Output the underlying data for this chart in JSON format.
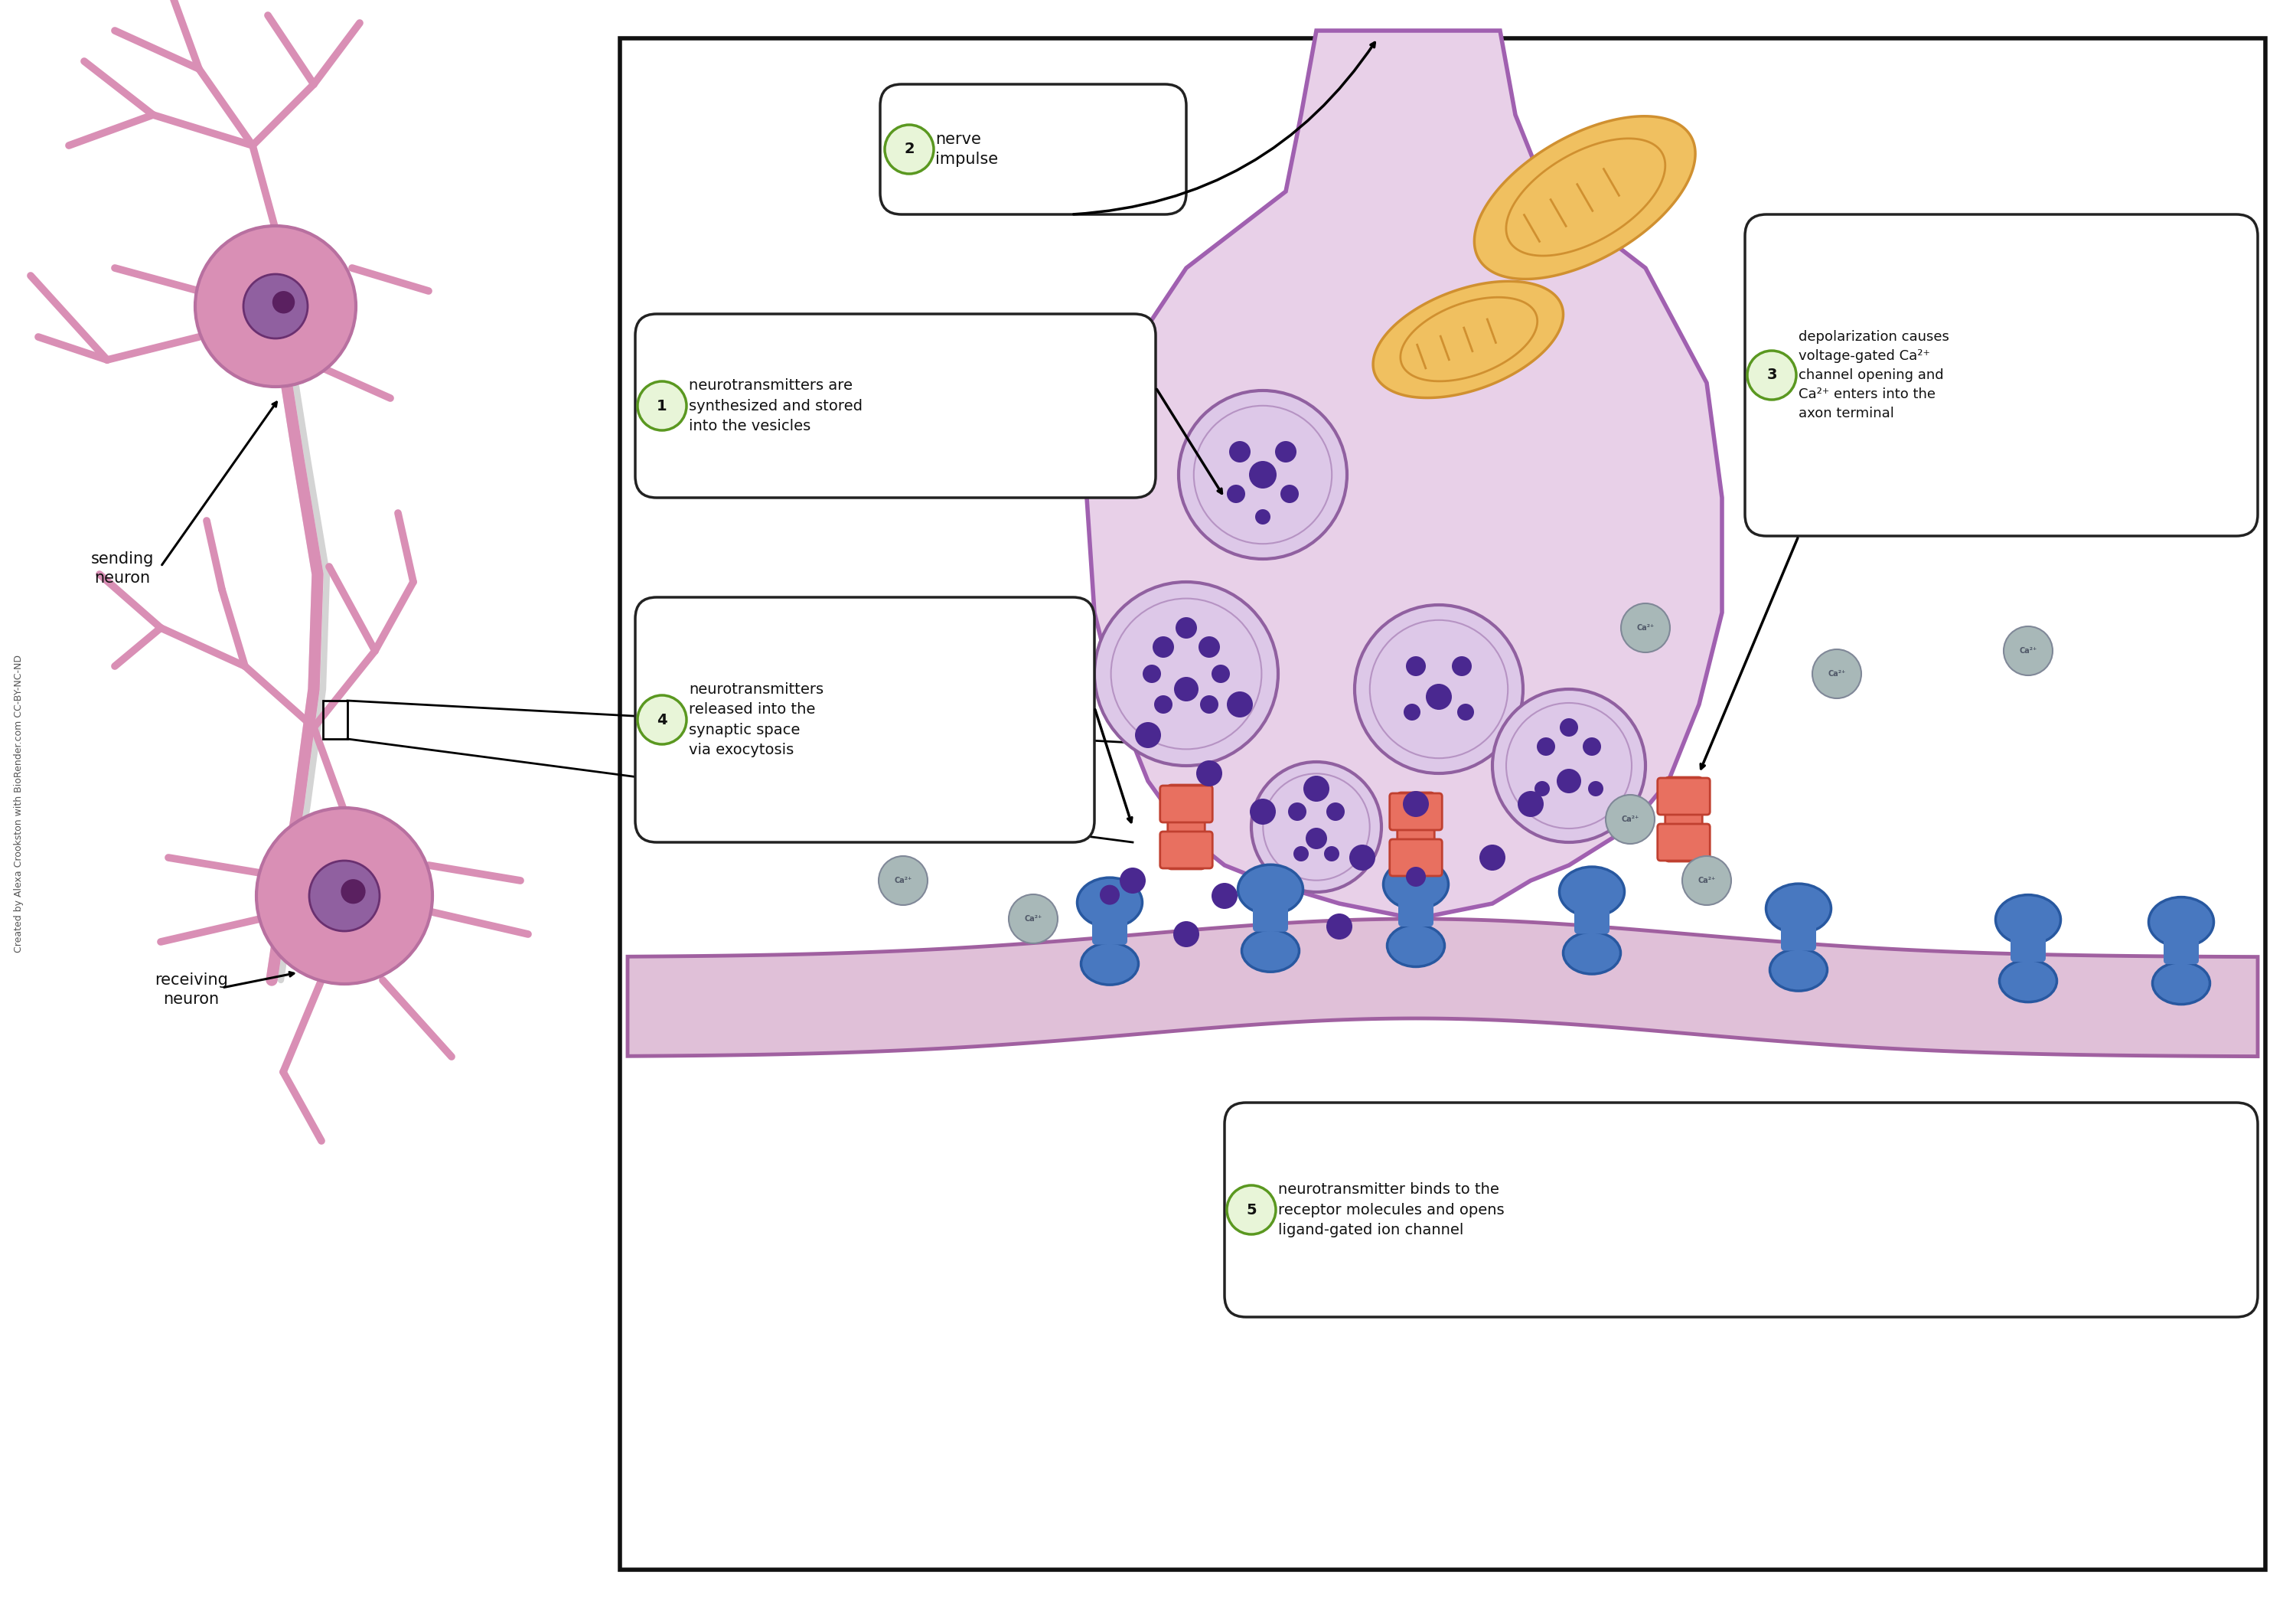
{
  "bg": "#ffffff",
  "neuron_fill": "#d98fb5",
  "neuron_edge": "#b870a0",
  "nucleus_fill": "#9060a0",
  "nucleus_edge": "#6a3070",
  "nucleolus_fill": "#5a2060",
  "axon_fill": "#e8d0e8",
  "axon_edge": "#a060b0",
  "mito_fill": "#f0c060",
  "mito_edge": "#d09030",
  "vesicle_fill": "#ddc8e8",
  "vesicle_edge": "#9060a0",
  "vesicle_dot": "#4a2890",
  "ca_fill": "#a8b8b8",
  "ca_edge": "#808898",
  "ca_text": "#505868",
  "channel_fill": "#e87060",
  "channel_edge": "#c04030",
  "receptor_fill": "#4878c0",
  "receptor_edge": "#2858a0",
  "post_fill": "#e0c0d8",
  "post_edge": "#a060a0",
  "box_bg": "#ffffff",
  "box_edge": "#222222",
  "num_bg": "#e8f5d8",
  "num_edge": "#5a9820",
  "border_edge": "#111111",
  "arrow_color": "#111111",
  "text_color": "#111111",
  "gray_line": "#888888",
  "ca_label": "Ca²⁺",
  "txt1": "neurotransmitters are\nsynthesized and stored\ninto the vesicles",
  "txt2": "nerve\nimpulse",
  "txt3": "depolarization causes\nvoltage-gated Ca²⁺\nchannel opening and\nCa²⁺ enters into the\naxon terminal",
  "txt4": "neurotransmitters\nreleased into the\nsynaptic space\nvia exocytosis",
  "txt5": "neurotransmitter binds to the\nreceptor molecules and opens\nligand-gated ion channel",
  "lbl_send": "sending\nneuron",
  "lbl_recv": "receiving\nneuron",
  "credit": "Created by Alexa Crookston with BioRender.com CC-BY-NC-ND"
}
